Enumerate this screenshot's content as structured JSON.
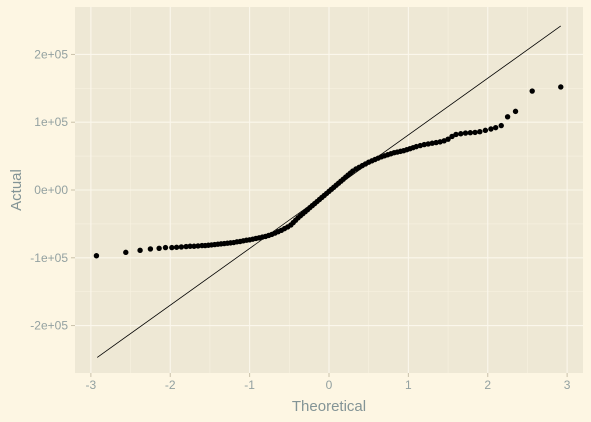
{
  "chart_data": {
    "type": "scatter",
    "title": "",
    "xlabel": "Theoretical",
    "ylabel": "Actual",
    "xlim": [
      -3.2,
      3.2
    ],
    "ylim": [
      -270000,
      270000
    ],
    "x_ticks": [
      {
        "value": -3,
        "label": "-3"
      },
      {
        "value": -2,
        "label": "-2"
      },
      {
        "value": -1,
        "label": "-1"
      },
      {
        "value": 0,
        "label": "0"
      },
      {
        "value": 1,
        "label": "1"
      },
      {
        "value": 2,
        "label": "2"
      },
      {
        "value": 3,
        "label": "3"
      }
    ],
    "y_ticks": [
      {
        "value": -200000,
        "label": "-2e+05"
      },
      {
        "value": -100000,
        "label": "-1e+05"
      },
      {
        "value": 0,
        "label": "0e+00"
      },
      {
        "value": 100000,
        "label": "1e+05"
      },
      {
        "value": 200000,
        "label": "2e+05"
      }
    ],
    "grid": true,
    "reference_line": {
      "x": [
        -2.92,
        2.92
      ],
      "y": [
        -247000,
        242000
      ]
    },
    "series": [
      {
        "points": [
          [
            -2.93,
            -97000
          ],
          [
            -2.56,
            -92000
          ],
          [
            -2.38,
            -89000
          ],
          [
            -2.25,
            -87000
          ],
          [
            -2.14,
            -86000
          ],
          [
            -2.06,
            -85000
          ],
          [
            -1.98,
            -85000
          ],
          [
            -1.92,
            -84500
          ],
          [
            -1.86,
            -84000
          ],
          [
            -1.8,
            -83500
          ],
          [
            -1.75,
            -83000
          ],
          [
            -1.7,
            -83000
          ],
          [
            -1.65,
            -82500
          ],
          [
            -1.6,
            -82000
          ],
          [
            -1.56,
            -82000
          ],
          [
            -1.52,
            -81500
          ],
          [
            -1.48,
            -81000
          ],
          [
            -1.44,
            -80500
          ],
          [
            -1.4,
            -80000
          ],
          [
            -1.36,
            -79500
          ],
          [
            -1.32,
            -79000
          ],
          [
            -1.28,
            -78500
          ],
          [
            -1.24,
            -78000
          ],
          [
            -1.2,
            -77500
          ],
          [
            -1.16,
            -76500
          ],
          [
            -1.12,
            -76000
          ],
          [
            -1.08,
            -75000
          ],
          [
            -1.04,
            -74000
          ],
          [
            -1.0,
            -73500
          ],
          [
            -0.96,
            -72500
          ],
          [
            -0.92,
            -71500
          ],
          [
            -0.88,
            -70500
          ],
          [
            -0.84,
            -69500
          ],
          [
            -0.8,
            -68500
          ],
          [
            -0.76,
            -67000
          ],
          [
            -0.72,
            -65500
          ],
          [
            -0.68,
            -63500
          ],
          [
            -0.64,
            -61500
          ],
          [
            -0.6,
            -59500
          ],
          [
            -0.56,
            -57000
          ],
          [
            -0.52,
            -54500
          ],
          [
            -0.48,
            -51500
          ],
          [
            -0.45,
            -48000
          ],
          [
            -0.42,
            -44500
          ],
          [
            -0.39,
            -41000
          ],
          [
            -0.36,
            -38000
          ],
          [
            -0.33,
            -35000
          ],
          [
            -0.3,
            -32000
          ],
          [
            -0.27,
            -29000
          ],
          [
            -0.24,
            -26000
          ],
          [
            -0.21,
            -23000
          ],
          [
            -0.18,
            -20000
          ],
          [
            -0.15,
            -17000
          ],
          [
            -0.12,
            -14000
          ],
          [
            -0.09,
            -11000
          ],
          [
            -0.06,
            -8000
          ],
          [
            -0.03,
            -5000
          ],
          [
            0.0,
            -2000
          ],
          [
            0.03,
            1000
          ],
          [
            0.06,
            4000
          ],
          [
            0.09,
            7000
          ],
          [
            0.12,
            10000
          ],
          [
            0.15,
            13000
          ],
          [
            0.18,
            16000
          ],
          [
            0.21,
            19000
          ],
          [
            0.24,
            22000
          ],
          [
            0.27,
            25000
          ],
          [
            0.3,
            28000
          ],
          [
            0.34,
            31000
          ],
          [
            0.38,
            33500
          ],
          [
            0.42,
            36000
          ],
          [
            0.46,
            38500
          ],
          [
            0.5,
            41000
          ],
          [
            0.54,
            43000
          ],
          [
            0.58,
            45000
          ],
          [
            0.62,
            47000
          ],
          [
            0.66,
            49000
          ],
          [
            0.7,
            50500
          ],
          [
            0.74,
            52000
          ],
          [
            0.78,
            53500
          ],
          [
            0.82,
            55000
          ],
          [
            0.86,
            56000
          ],
          [
            0.9,
            57000
          ],
          [
            0.94,
            58000
          ],
          [
            0.98,
            59500
          ],
          [
            1.02,
            61000
          ],
          [
            1.06,
            62500
          ],
          [
            1.1,
            64000
          ],
          [
            1.15,
            65500
          ],
          [
            1.2,
            67000
          ],
          [
            1.25,
            68000
          ],
          [
            1.3,
            69000
          ],
          [
            1.35,
            70000
          ],
          [
            1.4,
            71000
          ],
          [
            1.45,
            72500
          ],
          [
            1.5,
            75000
          ],
          [
            1.55,
            79000
          ],
          [
            1.6,
            82000
          ],
          [
            1.66,
            83000
          ],
          [
            1.72,
            84000
          ],
          [
            1.78,
            84500
          ],
          [
            1.84,
            85000
          ],
          [
            1.9,
            86000
          ],
          [
            1.97,
            88000
          ],
          [
            2.04,
            90000
          ],
          [
            2.1,
            92000
          ],
          [
            2.17,
            95000
          ],
          [
            2.25,
            108000
          ],
          [
            2.35,
            116000
          ],
          [
            2.56,
            146000
          ],
          [
            2.92,
            152000
          ]
        ]
      }
    ]
  }
}
